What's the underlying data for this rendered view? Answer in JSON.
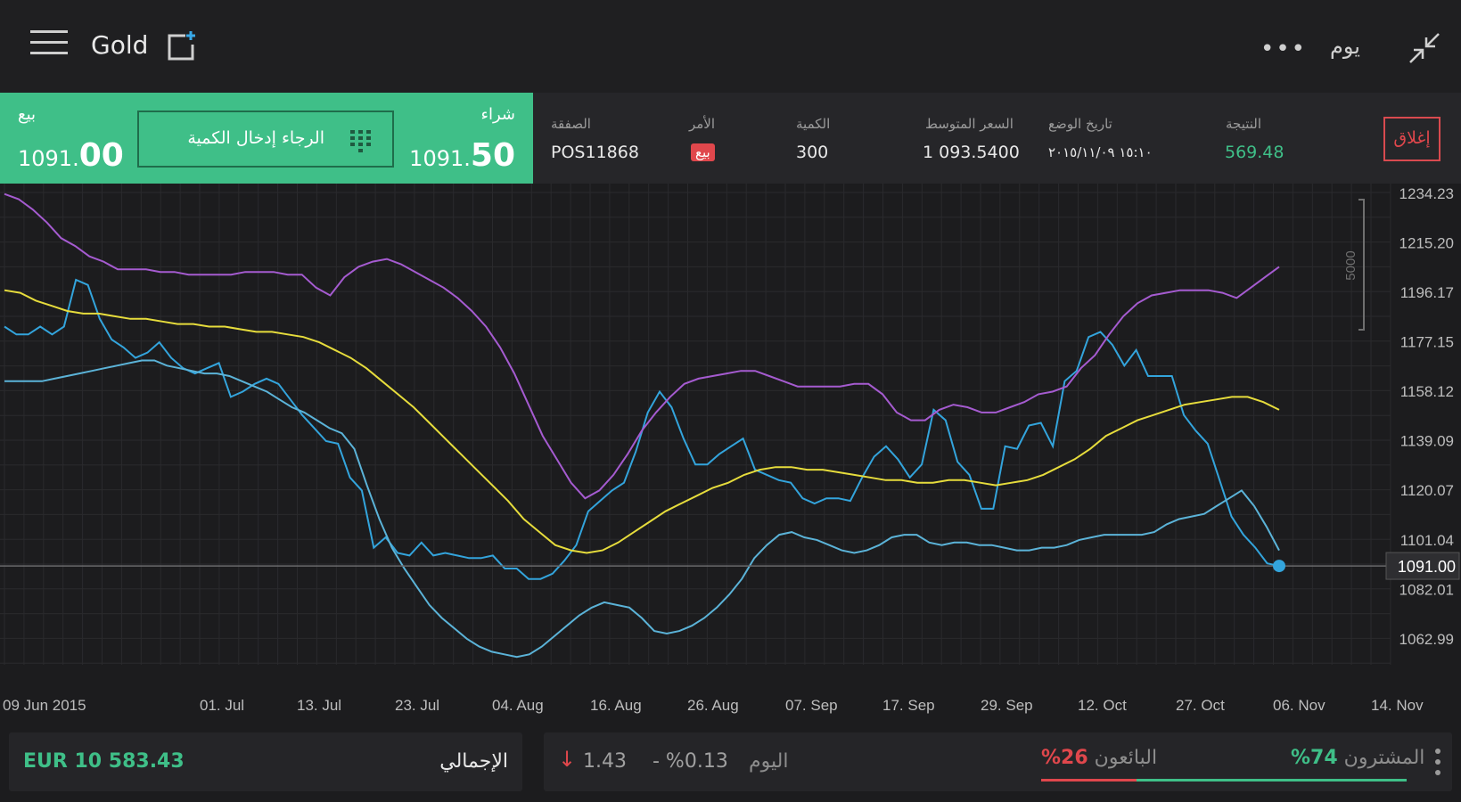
{
  "header": {
    "title": "Gold",
    "period": "يوم",
    "more": "•••"
  },
  "trade": {
    "sell_label": "بيع",
    "sell_price_small": "1091.",
    "sell_price_big": "00",
    "buy_label": "شراء",
    "buy_price_small": "1091.",
    "buy_price_big": "50",
    "quantity_placeholder": "الرجاء إدخال الكمية"
  },
  "position": {
    "deal_label": "الصفقة",
    "deal_value": "POS11868",
    "order_label": "الأمر",
    "order_value": "بيع",
    "quantity_label": "الكمية",
    "quantity_value": "300",
    "avg_label": "السعر المتوسط",
    "avg_value": "1 093.5400",
    "date_label": "تاريخ الوضع",
    "date_value": "١٥:١٠ ٢٠١٥/١١/٠٩",
    "result_label": "النتيجة",
    "result_value": "569.48",
    "close_label": "إغلاق"
  },
  "colors": {
    "accent_green": "#3fbf88",
    "accent_red": "#e0474c",
    "price_blue": "#33a4dc",
    "band_blue": "#5bb3d8",
    "ma_yellow": "#e6dc3c",
    "ma_purple": "#a55bd0"
  },
  "chart_data": {
    "type": "line",
    "x_ticks": [
      "09 Jun 2015",
      "01. Jul",
      "13. Jul",
      "23. Jul",
      "04. Aug",
      "16. Aug",
      "26. Aug",
      "07. Sep",
      "17. Sep",
      "29. Sep",
      "12. Oct",
      "27. Oct",
      "06. Nov",
      "14. Nov"
    ],
    "y_ticks": [
      "1234.23",
      "1215.20",
      "1196.17",
      "1177.15",
      "1158.12",
      "1139.09",
      "1120.07",
      "1101.04",
      "1082.01",
      "1062.99"
    ],
    "ylim": [
      1053,
      1238
    ],
    "current_price": 1091.0,
    "current_price_label": "1091.00",
    "scale_label": "5000",
    "series": [
      {
        "values": [
          1183,
          1180,
          1180,
          1183,
          1180,
          1183,
          1201,
          1199,
          1186,
          1178,
          1175,
          1171,
          1173,
          1177,
          1171,
          1167,
          1165,
          1167,
          1169,
          1156,
          1158,
          1161,
          1163,
          1161,
          1155,
          1149,
          1144,
          1139,
          1138,
          1125,
          1120,
          1098,
          1102,
          1096,
          1095,
          1100,
          1095,
          1096,
          1095,
          1094,
          1094,
          1095,
          1090,
          1090,
          1086,
          1086,
          1088,
          1093,
          1099,
          1112,
          1116,
          1120,
          1123,
          1135,
          1150,
          1158,
          1152,
          1140,
          1130,
          1130,
          1134,
          1137,
          1140,
          1128,
          1126,
          1124,
          1123,
          1117,
          1115,
          1117,
          1117,
          1116,
          1125,
          1133,
          1137,
          1132,
          1125,
          1130,
          1151,
          1147,
          1131,
          1126,
          1113,
          1113,
          1137,
          1136,
          1145,
          1146,
          1137,
          1162,
          1166,
          1179,
          1181,
          1176,
          1168,
          1174,
          1164,
          1164,
          1164,
          1149,
          1143,
          1138,
          1124,
          1110,
          1103,
          1098,
          1092,
          1091
        ],
        "color": "#33a4dc"
      },
      {
        "values": [
          1162,
          1162,
          1162,
          1162,
          1163,
          1164,
          1165,
          1166,
          1167,
          1168,
          1169,
          1170,
          1170,
          1168,
          1167,
          1166,
          1165,
          1165,
          1164,
          1162,
          1160,
          1158,
          1155,
          1152,
          1150,
          1147,
          1144,
          1142,
          1136,
          1122,
          1109,
          1098,
          1090,
          1083,
          1076,
          1071,
          1067,
          1063,
          1060,
          1058,
          1057,
          1056,
          1057,
          1060,
          1064,
          1068,
          1072,
          1075,
          1077,
          1076,
          1075,
          1071,
          1066,
          1065,
          1066,
          1068,
          1071,
          1075,
          1080,
          1086,
          1094,
          1099,
          1103,
          1104,
          1102,
          1101,
          1099,
          1097,
          1096,
          1097,
          1099,
          1102,
          1103,
          1103,
          1100,
          1099,
          1100,
          1100,
          1099,
          1099,
          1098,
          1097,
          1097,
          1098,
          1098,
          1099,
          1101,
          1102,
          1103,
          1103,
          1103,
          1103,
          1104,
          1107,
          1109,
          1110,
          1111,
          1114,
          1117,
          1120,
          1114,
          1106,
          1097
        ],
        "color": "#5bb3d8"
      },
      {
        "values": [
          1197,
          1196,
          1193,
          1191,
          1189,
          1188,
          1188,
          1187,
          1186,
          1186,
          1185,
          1184,
          1184,
          1183,
          1183,
          1182,
          1181,
          1181,
          1180,
          1179,
          1177,
          1174,
          1171,
          1167,
          1162,
          1157,
          1152,
          1146,
          1140,
          1134,
          1128,
          1122,
          1116,
          1109,
          1104,
          1099,
          1097,
          1096,
          1097,
          1100,
          1104,
          1108,
          1112,
          1115,
          1118,
          1121,
          1123,
          1126,
          1128,
          1129,
          1129,
          1128,
          1128,
          1127,
          1126,
          1125,
          1124,
          1124,
          1123,
          1123,
          1124,
          1124,
          1123,
          1122,
          1123,
          1124,
          1126,
          1129,
          1132,
          1136,
          1141,
          1144,
          1147,
          1149,
          1151,
          1153,
          1154,
          1155,
          1156,
          1156,
          1154,
          1151
        ],
        "color": "#e6dc3c"
      },
      {
        "values": [
          1234,
          1232,
          1228,
          1223,
          1217,
          1214,
          1210,
          1208,
          1205,
          1205,
          1205,
          1204,
          1204,
          1203,
          1203,
          1203,
          1203,
          1204,
          1204,
          1204,
          1203,
          1203,
          1198,
          1195,
          1202,
          1206,
          1208,
          1209,
          1207,
          1204,
          1201,
          1198,
          1194,
          1189,
          1183,
          1175,
          1165,
          1153,
          1141,
          1132,
          1123,
          1117,
          1120,
          1126,
          1134,
          1143,
          1150,
          1156,
          1161,
          1163,
          1164,
          1165,
          1166,
          1166,
          1164,
          1162,
          1160,
          1160,
          1160,
          1160,
          1161,
          1161,
          1157,
          1150,
          1147,
          1147,
          1151,
          1153,
          1152,
          1150,
          1150,
          1152,
          1154,
          1157,
          1158,
          1160,
          1167,
          1172,
          1180,
          1187,
          1192,
          1195,
          1196,
          1197,
          1197,
          1197,
          1196,
          1194,
          1198,
          1202,
          1206
        ],
        "color": "#a55bd0"
      }
    ]
  },
  "footer": {
    "total_label": "الإجمالي",
    "total_value": "EUR 10 583.43",
    "today_label": "اليوم",
    "change_pct": "- %0.13",
    "change_abs": "1.43",
    "change_arrow": "↓",
    "sellers_label": "البائعون",
    "sellers_pct": "%26",
    "sellers_share": 0.26,
    "buyers_label": "المشترون",
    "buyers_pct": "%74"
  }
}
